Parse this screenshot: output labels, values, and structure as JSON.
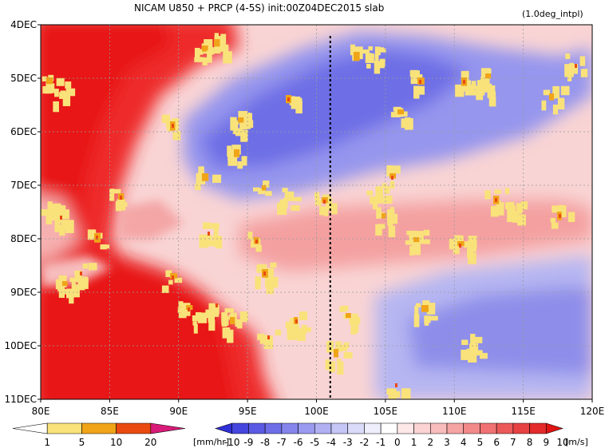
{
  "chart_data": {
    "type": "heatmap",
    "title": "NICAM   U850 + PRCP (4-5S) init:00Z04DEC2015 slab",
    "subtitle": "(1.0deg_intpl)",
    "x_ticks": [
      "80E",
      "85E",
      "90E",
      "95E",
      "100E",
      "105E",
      "110E",
      "115E",
      "120E"
    ],
    "x_range": [
      80,
      120
    ],
    "y_ticks": [
      "4DEC",
      "5DEC",
      "6DEC",
      "7DEC",
      "8DEC",
      "9DEC",
      "10DEC",
      "11DEC"
    ],
    "y_range": [
      "4DEC",
      "11DEC"
    ],
    "grid": true,
    "reference_line_x": 101,
    "u850_colorbar": {
      "unit": "[m/s]",
      "labels": [
        "-10",
        "-9",
        "-8",
        "-7",
        "-6",
        "-5",
        "-4",
        "-3",
        "-2",
        "-1",
        "0",
        "1",
        "2",
        "3",
        "4",
        "5",
        "6",
        "7",
        "8",
        "9",
        "10"
      ],
      "colors": [
        "#2f2fd6",
        "#4545df",
        "#5a5ae4",
        "#6e6ee8",
        "#8484ec",
        "#9a9af0",
        "#b0b0f3",
        "#c6c6f6",
        "#dadaf9",
        "#eeeefc",
        "#ffffff",
        "#fde7e7",
        "#fbd3d3",
        "#f9bcbc",
        "#f6a3a3",
        "#f38a8a",
        "#f07272",
        "#ec5959",
        "#e84141",
        "#e42a2a",
        "#e01414"
      ]
    },
    "prcp_colorbar": {
      "unit": "[mm/hr]",
      "labels": [
        "1",
        "5",
        "10",
        "20"
      ],
      "colors": [
        "#ffffff",
        "#f9e27a",
        "#f0a418",
        "#ea4a10",
        "#d81a78"
      ]
    },
    "u850_regions": [
      {
        "desc": "strong westerly",
        "value": 10,
        "color": "#ee2b2b"
      },
      {
        "desc": "easterly",
        "value": -6,
        "color": "#7a7ae6"
      },
      {
        "desc": "weak westerly",
        "value": 2,
        "color": "#f9c6c6"
      }
    ]
  },
  "colors": {
    "frame": "#000000",
    "grid": "#9a9a9a"
  }
}
